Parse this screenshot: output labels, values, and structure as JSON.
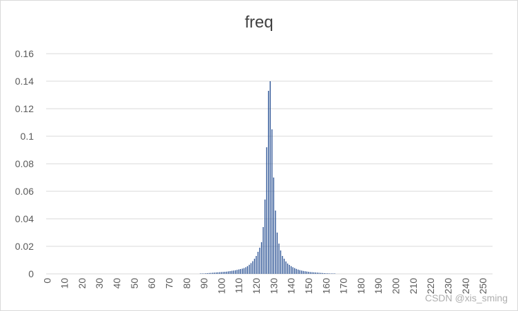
{
  "chart_data": {
    "type": "bar",
    "title": "freq",
    "xlabel": "",
    "ylabel": "",
    "x_range": [
      0,
      255
    ],
    "x_tick_labels": [
      "0",
      "10",
      "20",
      "30",
      "40",
      "50",
      "60",
      "70",
      "80",
      "90",
      "100",
      "110",
      "120",
      "130",
      "140",
      "150",
      "160",
      "170",
      "180",
      "190",
      "200",
      "210",
      "220",
      "230",
      "240",
      "250"
    ],
    "y_tick_labels": [
      "0",
      "0.02",
      "0.04",
      "0.06",
      "0.08",
      "0.1",
      "0.12",
      "0.14",
      "0.16"
    ],
    "ylim": [
      0,
      0.16
    ],
    "grid": true,
    "legend": "none",
    "bar_color": "#2e5596",
    "x": [
      88,
      89,
      90,
      91,
      92,
      93,
      94,
      95,
      96,
      97,
      98,
      99,
      100,
      101,
      102,
      103,
      104,
      105,
      106,
      107,
      108,
      109,
      110,
      111,
      112,
      113,
      114,
      115,
      116,
      117,
      118,
      119,
      120,
      121,
      122,
      123,
      124,
      125,
      126,
      127,
      128,
      129,
      130,
      131,
      132,
      133,
      134,
      135,
      136,
      137,
      138,
      139,
      140,
      141,
      142,
      143,
      144,
      145,
      146,
      147,
      148,
      149,
      150,
      151,
      152,
      153,
      154,
      155,
      156,
      157,
      158,
      159,
      160,
      161,
      162,
      163,
      164,
      165
    ],
    "values": [
      0.0002,
      0.0003,
      0.0003,
      0.0004,
      0.0005,
      0.0006,
      0.0007,
      0.0008,
      0.0009,
      0.001,
      0.0011,
      0.0012,
      0.0013,
      0.0014,
      0.0015,
      0.0016,
      0.0018,
      0.002,
      0.0022,
      0.0024,
      0.0026,
      0.0029,
      0.0032,
      0.0035,
      0.0038,
      0.0042,
      0.0048,
      0.0056,
      0.0066,
      0.0078,
      0.0092,
      0.011,
      0.013,
      0.016,
      0.019,
      0.023,
      0.034,
      0.054,
      0.092,
      0.133,
      0.14,
      0.105,
      0.07,
      0.046,
      0.03,
      0.022,
      0.017,
      0.013,
      0.011,
      0.009,
      0.0075,
      0.0065,
      0.0056,
      0.0048,
      0.0042,
      0.0036,
      0.0031,
      0.0027,
      0.0024,
      0.0021,
      0.0019,
      0.0017,
      0.0015,
      0.0013,
      0.0012,
      0.0011,
      0.001,
      0.0009,
      0.0008,
      0.0007,
      0.0006,
      0.0005,
      0.0004,
      0.0004,
      0.0003,
      0.0003,
      0.0002,
      0.0002
    ]
  },
  "watermark": {
    "text": "CSDN @xis_sming"
  }
}
